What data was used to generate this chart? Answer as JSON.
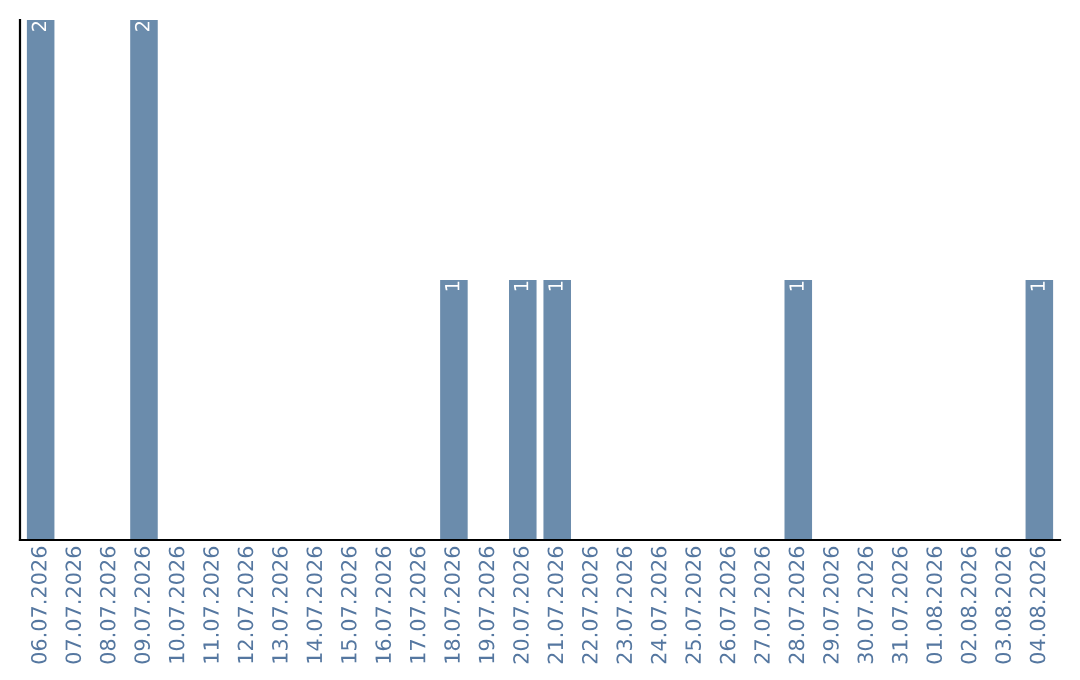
{
  "chart_data": {
    "type": "bar",
    "categories": [
      "06.07.2026",
      "07.07.2026",
      "08.07.2026",
      "09.07.2026",
      "10.07.2026",
      "11.07.2026",
      "12.07.2026",
      "13.07.2026",
      "14.07.2026",
      "15.07.2026",
      "16.07.2026",
      "17.07.2026",
      "18.07.2026",
      "19.07.2026",
      "20.07.2026",
      "21.07.2026",
      "22.07.2026",
      "23.07.2026",
      "24.07.2026",
      "25.07.2026",
      "26.07.2026",
      "27.07.2026",
      "28.07.2026",
      "29.07.2026",
      "30.07.2026",
      "31.07.2026",
      "01.08.2026",
      "02.08.2026",
      "03.08.2026",
      "04.08.2026"
    ],
    "values": [
      2,
      0,
      0,
      2,
      0,
      0,
      0,
      0,
      0,
      0,
      0,
      0,
      1,
      0,
      1,
      1,
      0,
      0,
      0,
      0,
      0,
      0,
      1,
      0,
      0,
      0,
      0,
      0,
      0,
      1
    ],
    "value_labels": [
      "2",
      null,
      null,
      "2",
      null,
      null,
      null,
      null,
      null,
      null,
      null,
      null,
      "1",
      null,
      "1",
      "1",
      null,
      null,
      null,
      null,
      null,
      null,
      "1",
      null,
      null,
      null,
      null,
      null,
      null,
      "1"
    ],
    "color": "#6b8cac",
    "ylim": [
      0,
      2
    ],
    "tick_labels": "x",
    "grid": false,
    "legend": false
  }
}
